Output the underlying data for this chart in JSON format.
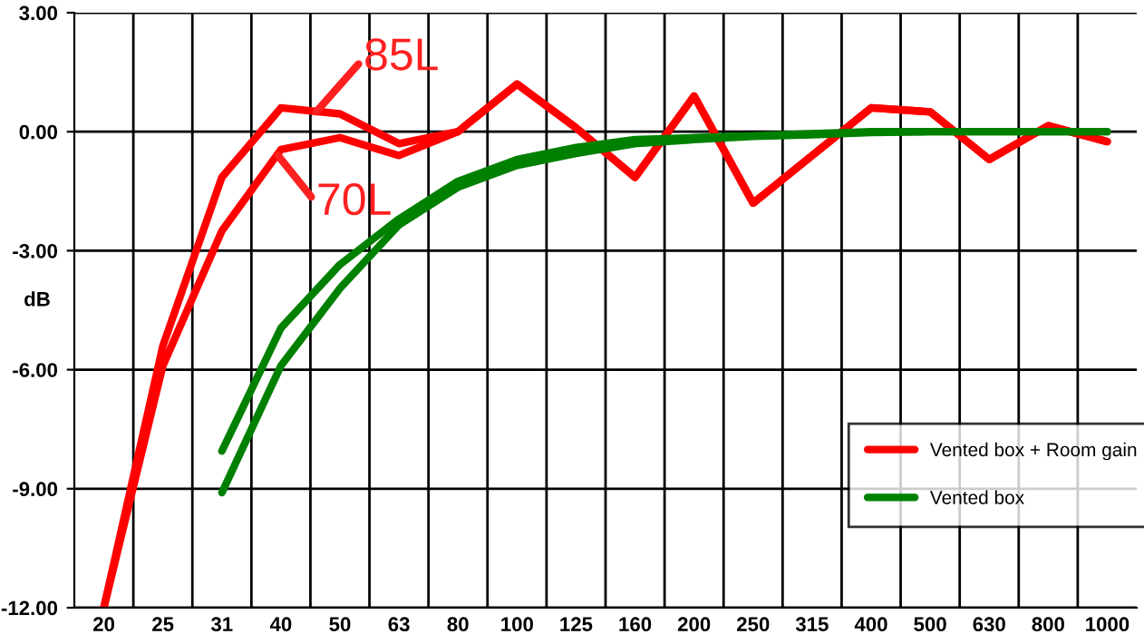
{
  "chart_data": {
    "type": "line",
    "ylabel": "dB",
    "categories": [
      "20",
      "25",
      "31",
      "40",
      "50",
      "63",
      "80",
      "100",
      "125",
      "160",
      "200",
      "250",
      "315",
      "400",
      "500",
      "630",
      "800",
      "1000"
    ],
    "series": [
      {
        "name": "Vented box + Room gain",
        "color": "#ff0000",
        "values": [
          -12,
          -5.4,
          -1.15,
          0.6,
          0.45,
          -0.3,
          0,
          1.2,
          0.1,
          -1.15,
          0.9,
          -1.8,
          -0.6,
          0.6,
          0.5,
          -0.7,
          0.15,
          -0.25
        ]
      },
      {
        "color": "#ff0000",
        "values": [
          -12,
          -5.9,
          -2.5,
          -0.45,
          -0.15,
          -0.6,
          0,
          1.2,
          0.1,
          -1.15,
          0.9,
          -1.8,
          -0.6,
          0.6,
          0.5,
          -0.7,
          0.15,
          -0.25
        ]
      },
      {
        "name": "Vented box",
        "color": "#008000",
        "values": [
          null,
          null,
          -8.05,
          -4.95,
          -3.35,
          -2.2,
          -1.25,
          -0.7,
          -0.4,
          -0.2,
          -0.15,
          -0.1,
          -0.05,
          0,
          0,
          0,
          0,
          0
        ]
      },
      {
        "color": "#008000",
        "values": [
          null,
          null,
          -9.1,
          -5.9,
          -3.95,
          -2.35,
          -1.4,
          -0.85,
          -0.55,
          -0.3,
          -0.2,
          -0.12,
          -0.08,
          -0.02,
          0,
          0,
          0,
          0
        ]
      }
    ],
    "ylim": [
      -12,
      3
    ],
    "yticks": [
      {
        "value": -12,
        "label": "-12.00"
      },
      {
        "value": -9,
        "label": "-9.00"
      },
      {
        "value": -6,
        "label": "-6.00"
      },
      {
        "value": -3,
        "label": "-3.00"
      },
      {
        "value": 0,
        "label": "0.00"
      },
      {
        "value": 3,
        "label": "3.00"
      }
    ],
    "grid": true,
    "legend": "lower right",
    "marker": "none",
    "line_style": "solid",
    "annotations": [
      "85L",
      "70L"
    ]
  }
}
